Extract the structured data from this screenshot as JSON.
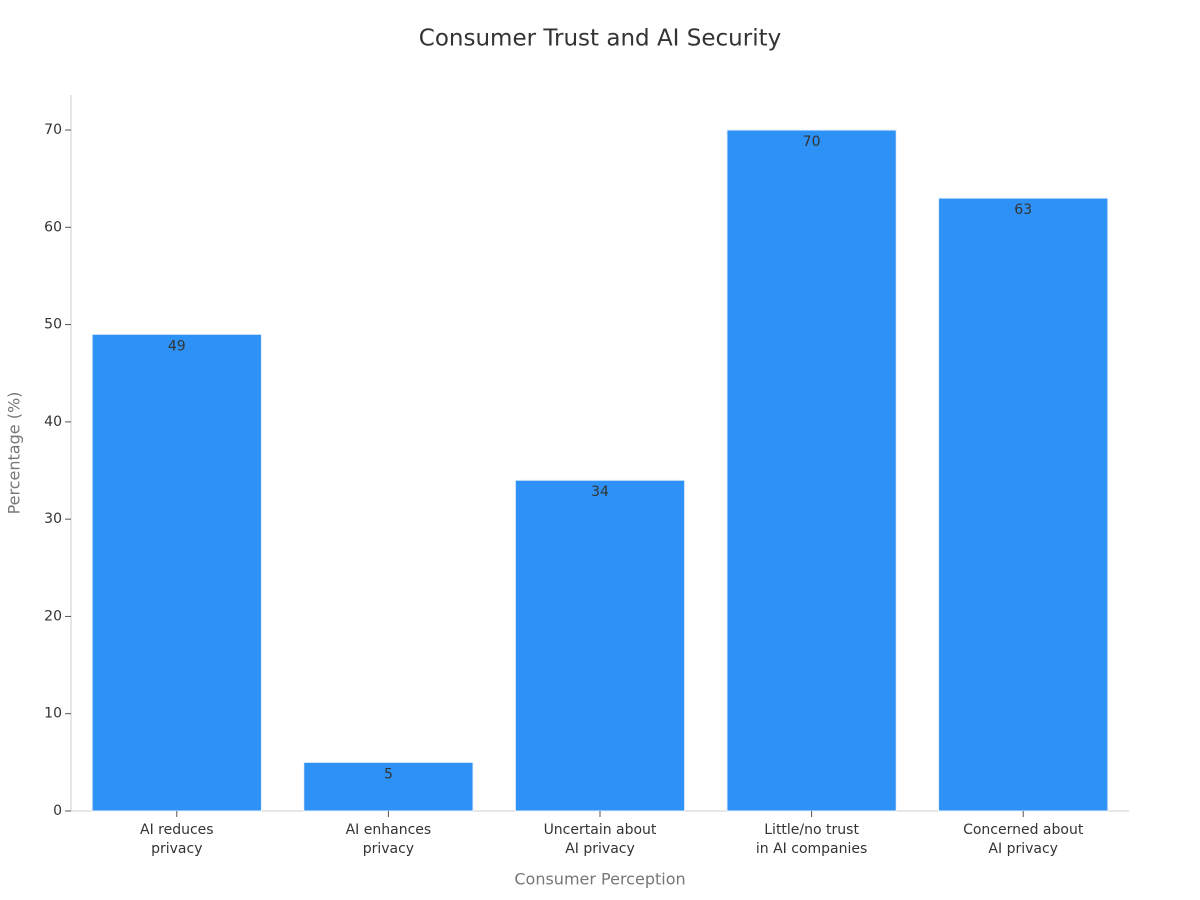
{
  "chart_data": {
    "type": "bar",
    "title": "Consumer Trust and AI Security",
    "x_label": "Consumer Perception",
    "y_label": "Percentage (%)",
    "categories": [
      "AI reduces\nprivacy",
      "AI enhances\nprivacy",
      "Uncertain about\nAI privacy",
      "Little/no trust\nin AI companies",
      "Concerned about\nAI privacy"
    ],
    "values": [
      49,
      5,
      34,
      70,
      63
    ],
    "color": "#2e91f5",
    "ylim": [
      0,
      73.6
    ],
    "yticks": [
      0,
      10,
      20,
      30,
      40,
      50,
      60,
      70
    ],
    "grid": false
  }
}
